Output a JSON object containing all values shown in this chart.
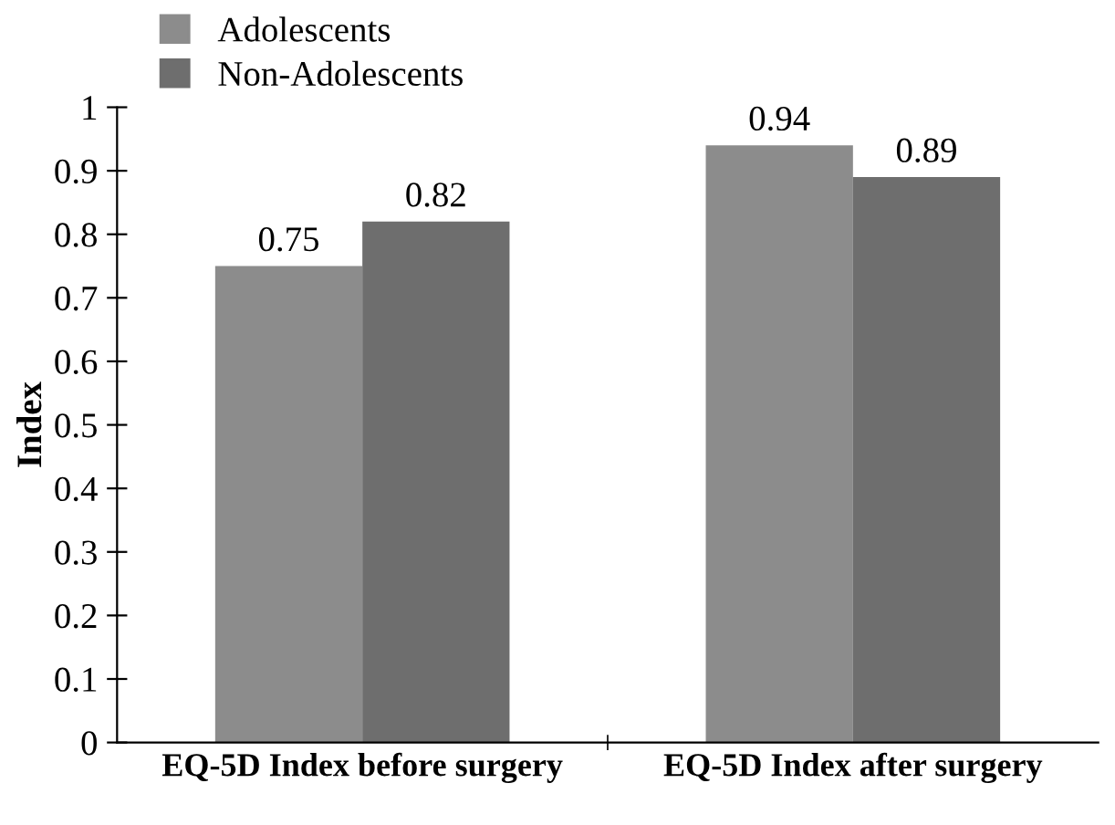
{
  "chart_data": {
    "type": "bar",
    "ylabel": "Index",
    "categories": [
      "EQ-5D Index before surgery",
      "EQ-5D Index after surgery"
    ],
    "series": [
      {
        "name": "Adolescents",
        "color": "#8c8c8c",
        "values": [
          0.75,
          0.94
        ]
      },
      {
        "name": "Non-Adolescents",
        "color": "#6e6e6e",
        "values": [
          0.82,
          0.89
        ]
      }
    ],
    "ylim": [
      0,
      1
    ],
    "yticks": [
      0,
      0.1,
      0.2,
      0.3,
      0.4,
      0.5,
      0.6,
      0.7,
      0.8,
      0.9,
      1
    ],
    "data_labels": true,
    "grid": false,
    "legend": "top left"
  }
}
